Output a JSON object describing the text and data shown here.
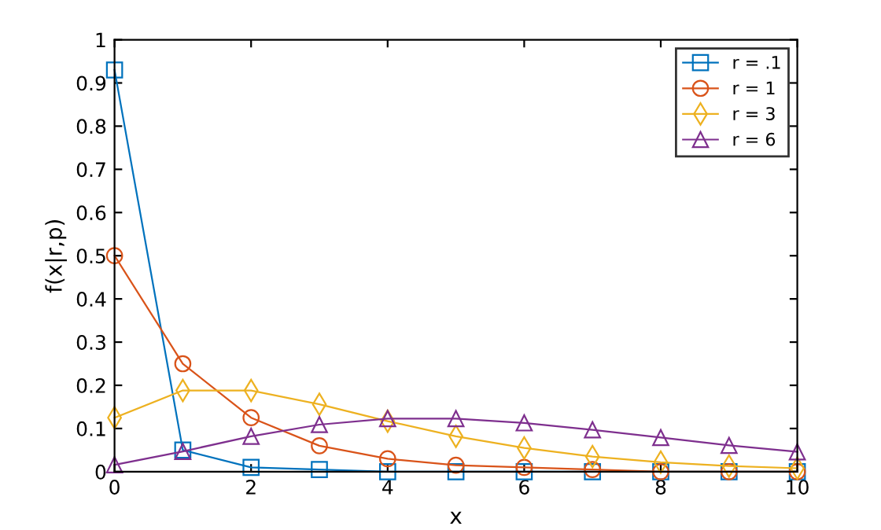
{
  "chart_data": {
    "type": "line",
    "xlabel": "x",
    "ylabel": "f(x|r,p)",
    "x": [
      0,
      1,
      2,
      3,
      4,
      5,
      6,
      7,
      8,
      9,
      10
    ],
    "series": [
      {
        "name": "r = .1",
        "color": "#0072bd",
        "marker": "square",
        "values": [
          0.93,
          0.05,
          0.01,
          0.005,
          0.0,
          0.0,
          0.0,
          0.0,
          0.0,
          0.0,
          0.0
        ]
      },
      {
        "name": "r = 1",
        "color": "#d95319",
        "marker": "circle",
        "values": [
          0.5,
          0.25,
          0.125,
          0.06,
          0.03,
          0.015,
          0.01,
          0.005,
          0.0,
          0.0,
          0.0
        ]
      },
      {
        "name": "r = 3",
        "color": "#edb120",
        "marker": "diamond",
        "values": [
          0.125,
          0.188,
          0.188,
          0.156,
          0.117,
          0.082,
          0.055,
          0.035,
          0.022,
          0.013,
          0.008
        ]
      },
      {
        "name": "r = 6",
        "color": "#7e2f8e",
        "marker": "triangle",
        "values": [
          0.016,
          0.047,
          0.082,
          0.109,
          0.123,
          0.123,
          0.113,
          0.097,
          0.079,
          0.061,
          0.046
        ]
      }
    ],
    "xlim": [
      0,
      10
    ],
    "xticks": [
      0,
      2,
      4,
      6,
      8,
      10
    ],
    "ylim": [
      0,
      1
    ],
    "yticks": [
      0,
      0.1,
      0.2,
      0.3,
      0.4,
      0.5,
      0.6,
      0.7,
      0.8,
      0.9,
      1
    ],
    "legend": "top right",
    "grid": false,
    "line_style": "solid"
  }
}
